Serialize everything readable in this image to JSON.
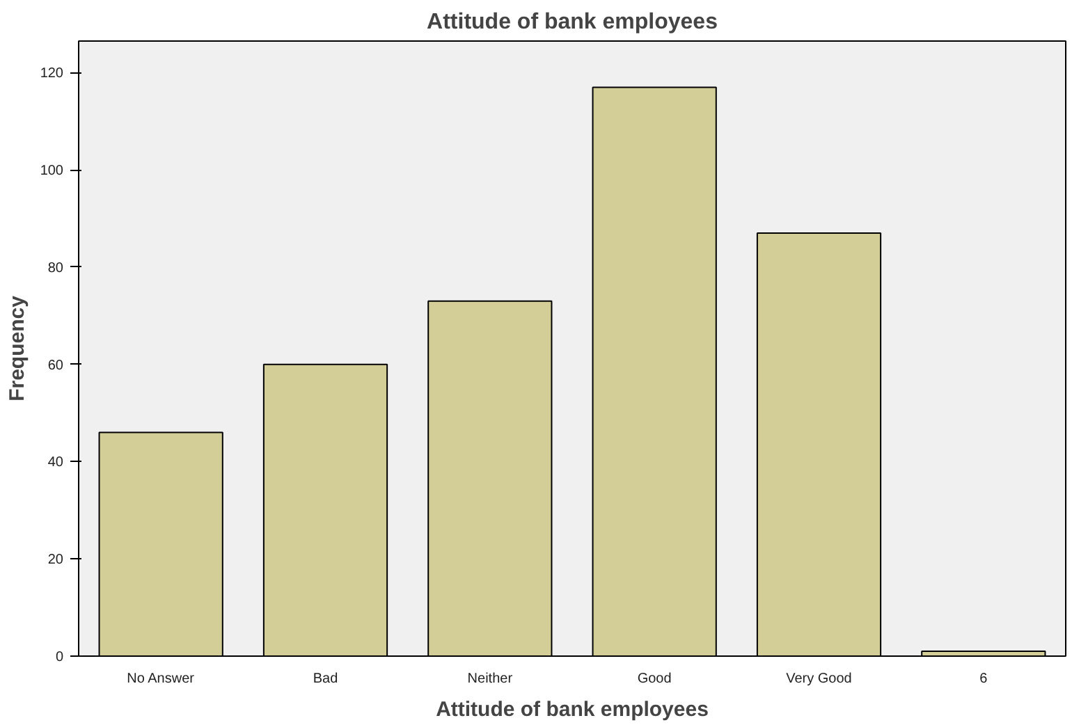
{
  "chart_data": {
    "type": "bar",
    "title": "Attitude of bank employees",
    "xlabel": "Attitude of bank employees",
    "ylabel": "Frequency",
    "categories": [
      "No Answer",
      "Bad",
      "Neither",
      "Good",
      "Very Good",
      "6"
    ],
    "values": [
      46,
      60,
      73,
      117,
      87,
      1
    ],
    "color": "#d3ce98",
    "ylim": [
      0,
      126.5
    ],
    "yticks": [
      0,
      20,
      40,
      60,
      80,
      100,
      120
    ],
    "grid": false
  }
}
